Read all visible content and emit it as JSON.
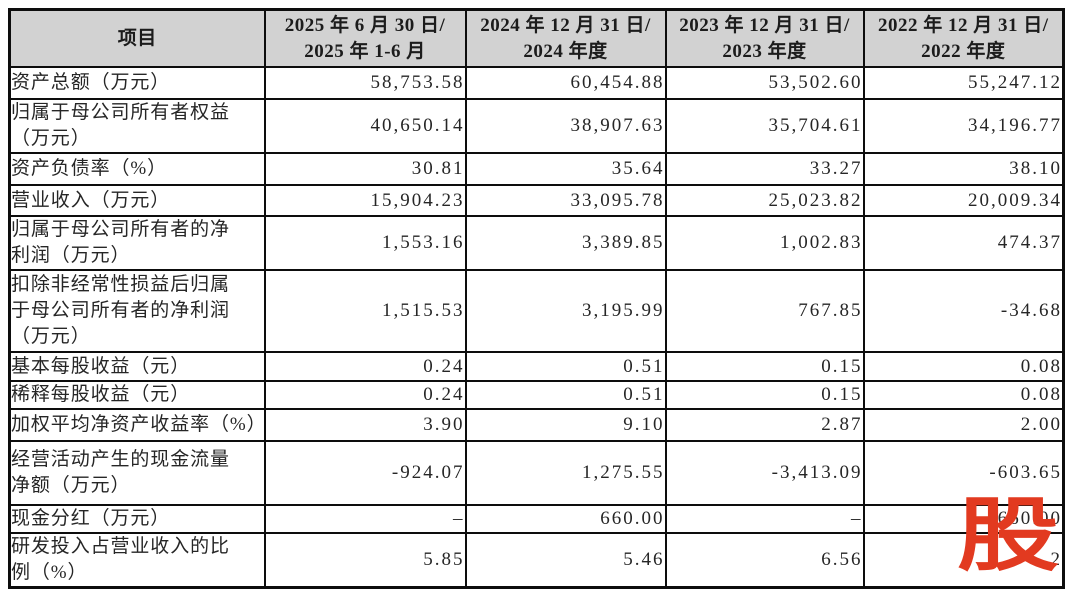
{
  "watermark": {
    "text": "股",
    "color": "#e23a20"
  },
  "table": {
    "header": {
      "item_label": "项目",
      "periods": [
        {
          "line1": "2025 年 6 月 30 日/",
          "line2": "2025 年 1-6 月"
        },
        {
          "line1": "2024 年 12 月 31 日/",
          "line2": "2024 年度"
        },
        {
          "line1": "2023 年 12 月 31 日/",
          "line2": "2023 年度"
        },
        {
          "line1": "2022 年 12 月 31 日/",
          "line2": "2022 年度"
        }
      ]
    },
    "rows": [
      {
        "label": "资产总额（万元）",
        "values": [
          "58,753.58",
          "60,454.88",
          "53,502.60",
          "55,247.12"
        ]
      },
      {
        "label": "归属于母公司所有者权益\n（万元）",
        "values": [
          "40,650.14",
          "38,907.63",
          "35,704.61",
          "34,196.77"
        ]
      },
      {
        "label": "资产负债率（%）",
        "values": [
          "30.81",
          "35.64",
          "33.27",
          "38.10"
        ]
      },
      {
        "label": "营业收入（万元）",
        "values": [
          "15,904.23",
          "33,095.78",
          "25,023.82",
          "20,009.34"
        ]
      },
      {
        "label": "归属于母公司所有者的净\n利润（万元）",
        "values": [
          "1,553.16",
          "3,389.85",
          "1,002.83",
          "474.37"
        ]
      },
      {
        "label": "扣除非经常性损益后归属\n于母公司所有者的净利润\n（万元）",
        "values": [
          "1,515.53",
          "3,195.99",
          "767.85",
          "-34.68"
        ]
      },
      {
        "label": "基本每股收益（元）",
        "values": [
          "0.24",
          "0.51",
          "0.15",
          "0.08"
        ]
      },
      {
        "label": "稀释每股收益（元）",
        "values": [
          "0.24",
          "0.51",
          "0.15",
          "0.08"
        ]
      },
      {
        "label": "加权平均净资产收益率（%）",
        "values": [
          "3.90",
          "9.10",
          "2.87",
          "2.00"
        ]
      },
      {
        "label": "经营活动产生的现金流量\n净额（万元）",
        "values": [
          "-924.07",
          "1,275.55",
          "-3,413.09",
          "-603.65"
        ]
      },
      {
        "label": "现金分红（万元）",
        "values": [
          "–",
          "660.00",
          "–",
          "660.00"
        ]
      },
      {
        "label": "研发投入占营业收入的比\n例（%）",
        "values": [
          "5.85",
          "5.46",
          "6.56",
          "2"
        ]
      }
    ]
  }
}
